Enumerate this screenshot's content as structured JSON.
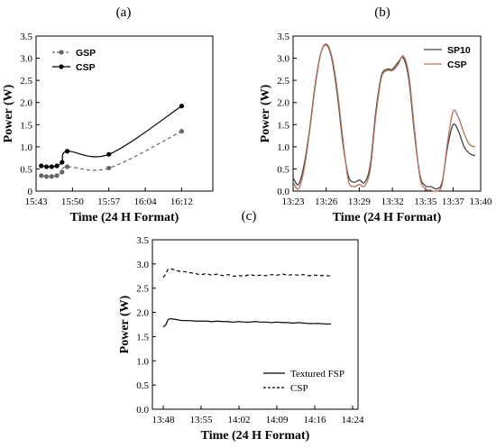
{
  "chart_data": [
    {
      "panel_label": "(a)",
      "type": "line",
      "xlabel": "Time (24 H Format)",
      "ylabel": "Power (W)",
      "xlim": [
        0,
        34
      ],
      "ylim": [
        0,
        3.5
      ],
      "xticks": [
        0,
        7,
        14,
        21,
        28
      ],
      "xtick_labels": [
        "15:43",
        "15:50",
        "15:57",
        "16:04",
        "16:12"
      ],
      "yticks": [
        0,
        0.5,
        1.0,
        1.5,
        2.0,
        2.5,
        3.0,
        3.5
      ],
      "ytick_labels": [
        "0",
        "0.5",
        "1.0",
        "1.5",
        "2.0",
        "2.5",
        "3.0",
        "3.5"
      ],
      "grid": false,
      "legend_position": "top-left",
      "series": [
        {
          "name": "GSP",
          "line_style": "dashed",
          "color": "#666666",
          "markers": true,
          "x": [
            1,
            2,
            3,
            4,
            5,
            6,
            14,
            28
          ],
          "y": [
            0.35,
            0.33,
            0.33,
            0.35,
            0.43,
            0.55,
            0.52,
            1.35
          ]
        },
        {
          "name": "CSP",
          "line_style": "solid",
          "color": "#000000",
          "markers": true,
          "x": [
            1,
            2,
            3,
            4,
            5,
            6,
            14,
            28
          ],
          "y": [
            0.57,
            0.55,
            0.55,
            0.57,
            0.65,
            0.9,
            0.83,
            1.92
          ]
        }
      ]
    },
    {
      "panel_label": "(b)",
      "type": "line",
      "xlabel": "Time (24 H Format)",
      "ylabel": "Power (W)",
      "xlim": [
        0,
        17
      ],
      "ylim": [
        0,
        3.5
      ],
      "xticks": [
        0,
        3,
        6,
        9,
        12,
        14.5,
        17
      ],
      "xtick_labels": [
        "13:23",
        "13:26",
        "13:29",
        "13:32",
        "13:35",
        "13:37",
        "13:40"
      ],
      "yticks": [
        0,
        0.5,
        1.0,
        1.5,
        2.0,
        2.5,
        3.0,
        3.5
      ],
      "ytick_labels": [
        "0.0",
        "0.5",
        "1.0",
        "1.5",
        "2.0",
        "2.5",
        "3.0",
        "3.5"
      ],
      "grid": false,
      "legend_position": "top-right",
      "series": [
        {
          "name": "SP10",
          "line_style": "solid",
          "color": "#444444",
          "x": [
            0,
            0.5,
            1,
            1.5,
            2,
            2.5,
            3,
            3.5,
            4,
            4.5,
            5,
            5.5,
            6,
            6.5,
            7,
            7.5,
            8,
            8.5,
            9,
            9.5,
            10,
            10.5,
            11,
            11.5,
            12,
            12.5,
            13,
            13.5,
            14,
            14.5,
            15,
            15.5,
            16,
            16.5
          ],
          "y": [
            0.3,
            0.15,
            0.6,
            1.4,
            2.4,
            3.1,
            3.3,
            3.0,
            2.2,
            1.1,
            0.35,
            0.2,
            0.25,
            0.2,
            0.6,
            1.8,
            2.6,
            2.75,
            2.75,
            2.9,
            3.0,
            2.5,
            1.3,
            0.35,
            0.12,
            0.1,
            0.05,
            0.2,
            1.0,
            1.5,
            1.35,
            1.0,
            0.85,
            0.8
          ]
        },
        {
          "name": "CSP",
          "line_style": "solid",
          "color": "#b8705a",
          "x": [
            0,
            0.5,
            1,
            1.5,
            2,
            2.5,
            3,
            3.5,
            4,
            4.5,
            5,
            5.5,
            6,
            6.5,
            7,
            7.5,
            8,
            8.5,
            9,
            9.5,
            10,
            10.5,
            11,
            11.5,
            12,
            12.5,
            13,
            13.5,
            14,
            14.5,
            15,
            15.5,
            16,
            16.5
          ],
          "y": [
            0.2,
            0.05,
            0.5,
            1.35,
            2.35,
            3.1,
            3.32,
            3.05,
            2.3,
            1.2,
            0.25,
            0.1,
            0.15,
            0.12,
            0.5,
            1.7,
            2.55,
            2.72,
            2.72,
            2.85,
            3.05,
            2.6,
            1.4,
            0.3,
            0.05,
            0.02,
            0.0,
            0.15,
            1.1,
            1.8,
            1.65,
            1.3,
            1.05,
            1.0
          ]
        }
      ]
    },
    {
      "panel_label": "(c)",
      "type": "line",
      "xlabel": "Time (24 H Format)",
      "ylabel": "Power (W)",
      "xlim": [
        -2,
        36
      ],
      "ylim": [
        0,
        3.5
      ],
      "xticks": [
        0,
        7,
        14,
        21,
        28,
        35
      ],
      "xtick_labels": [
        "13:48",
        "13:55",
        "14:02",
        "14:09",
        "14:16",
        "14:24"
      ],
      "yticks": [
        0,
        0.5,
        1.0,
        1.5,
        2.0,
        2.5,
        3.0,
        3.5
      ],
      "ytick_labels": [
        "0.0",
        "0.5",
        "1.0",
        "1.5",
        "2.0",
        "2.5",
        "3.0",
        "3.5"
      ],
      "grid": false,
      "legend_position": "bottom-right",
      "series": [
        {
          "name": "Textured FSP",
          "line_style": "solid",
          "color": "#000000",
          "x": [
            0,
            0.5,
            1,
            2,
            3,
            4,
            5,
            6,
            7,
            8,
            9,
            10,
            11,
            12,
            13,
            14,
            15,
            16,
            17,
            18,
            19,
            20,
            21,
            22,
            23,
            24,
            25,
            26,
            27,
            28,
            29,
            30,
            31
          ],
          "y": [
            1.7,
            1.75,
            1.86,
            1.86,
            1.84,
            1.83,
            1.83,
            1.82,
            1.82,
            1.82,
            1.81,
            1.82,
            1.81,
            1.81,
            1.8,
            1.81,
            1.8,
            1.8,
            1.81,
            1.8,
            1.8,
            1.79,
            1.8,
            1.79,
            1.79,
            1.78,
            1.79,
            1.78,
            1.77,
            1.77,
            1.77,
            1.76,
            1.76
          ]
        },
        {
          "name": "CSP",
          "line_style": "dashed",
          "color": "#000000",
          "x": [
            0,
            0.5,
            1,
            2,
            3,
            4,
            5,
            6,
            7,
            8,
            9,
            10,
            11,
            12,
            13,
            14,
            15,
            16,
            17,
            18,
            19,
            20,
            21,
            22,
            23,
            24,
            25,
            26,
            27,
            28,
            29,
            30,
            31
          ],
          "y": [
            2.72,
            2.8,
            2.9,
            2.88,
            2.85,
            2.84,
            2.82,
            2.8,
            2.78,
            2.8,
            2.77,
            2.79,
            2.76,
            2.78,
            2.75,
            2.76,
            2.75,
            2.78,
            2.76,
            2.77,
            2.76,
            2.78,
            2.77,
            2.79,
            2.77,
            2.78,
            2.77,
            2.78,
            2.76,
            2.77,
            2.76,
            2.76,
            2.75
          ]
        }
      ]
    }
  ]
}
